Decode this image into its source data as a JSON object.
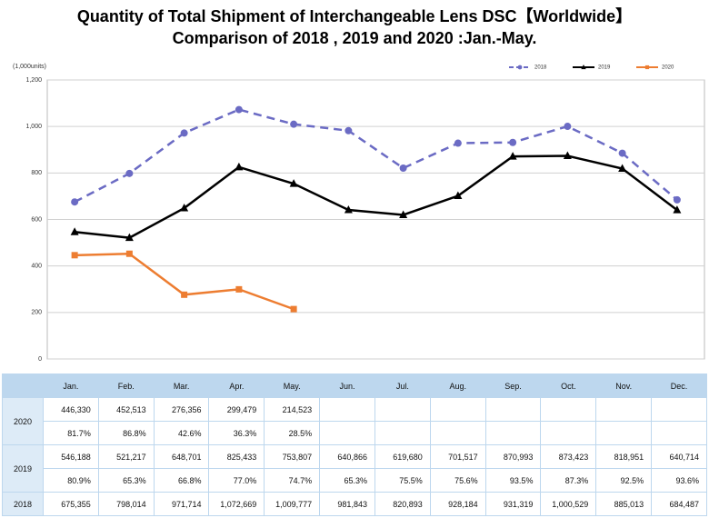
{
  "chart_data": {
    "type": "line",
    "title": "Quantity of Total Shipment of Interchangeable Lens DSC【Worldwide】",
    "subtitle": "Comparison of 2018 , 2019 and 2020 :Jan.-May.",
    "y_label": "(1,000units)",
    "categories": [
      "Jan.",
      "Feb.",
      "Mar.",
      "Apr.",
      "May.",
      "Jun.",
      "Jul.",
      "Aug.",
      "Sep.",
      "Oct.",
      "Nov.",
      "Dec."
    ],
    "ylim": [
      0,
      1200
    ],
    "yticks": [
      0,
      200,
      400,
      600,
      800,
      {
        "value": 1000,
        "label": "1,000"
      },
      {
        "value": 1200,
        "label": "1,200"
      }
    ],
    "grid": true,
    "legend": "top-right",
    "series": [
      {
        "name": "2018",
        "color": "#6b6bc4",
        "dash": true,
        "marker": "circle",
        "values": [
          675.355,
          798.014,
          971.714,
          1072.669,
          1009.777,
          981.843,
          820.893,
          928.184,
          931.319,
          1000.529,
          885.013,
          684.487
        ]
      },
      {
        "name": "2019",
        "color": "#000000",
        "dash": false,
        "marker": "triangle",
        "values": [
          546.188,
          521.217,
          648.701,
          825.433,
          753.807,
          640.866,
          619.68,
          701.517,
          870.993,
          873.423,
          818.951,
          640.714
        ]
      },
      {
        "name": "2020",
        "color": "#ed7d31",
        "dash": false,
        "marker": "square",
        "values": [
          446.33,
          452.513,
          276.356,
          299.479,
          214.523,
          null,
          null,
          null,
          null,
          null,
          null,
          null
        ]
      }
    ]
  },
  "table": {
    "rows": [
      {
        "label": "2020",
        "values": [
          "446,330",
          "452,513",
          "276,356",
          "299,479",
          "214,523"
        ],
        "percent": [
          "81.7%",
          "86.8%",
          "42.6%",
          "36.3%",
          "28.5%"
        ]
      },
      {
        "label": "2019",
        "values": [
          "546,188",
          "521,217",
          "648,701",
          "825,433",
          "753,807",
          "640,866",
          "619,680",
          "701,517",
          "870,993",
          "873,423",
          "818,951",
          "640,714"
        ],
        "percent": [
          "80.9%",
          "65.3%",
          "66.8%",
          "77.0%",
          "74.7%",
          "65.3%",
          "75.5%",
          "75.6%",
          "93.5%",
          "87.3%",
          "92.5%",
          "93.6%"
        ]
      },
      {
        "label": "2018",
        "values": [
          "675,355",
          "798,014",
          "971,714",
          "1,072,669",
          "1,009,777",
          "981,843",
          "820,893",
          "928,184",
          "931,319",
          "1,000,529",
          "885,013",
          "684,487"
        ]
      }
    ]
  }
}
